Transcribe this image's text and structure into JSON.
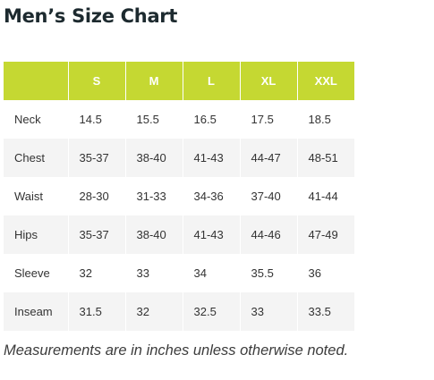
{
  "page": {
    "title": "Men’s Size Chart"
  },
  "table": {
    "headers": [
      "",
      "S",
      "M",
      "L",
      "XL",
      "XXL"
    ],
    "rows": [
      {
        "label": "Neck",
        "values": [
          "14.5",
          "15.5",
          "16.5",
          "17.5",
          "18.5"
        ]
      },
      {
        "label": "Chest",
        "values": [
          "35-37",
          "38-40",
          "41-43",
          "44-47",
          "48-51"
        ]
      },
      {
        "label": "Waist",
        "values": [
          "28-30",
          "31-33",
          "34-36",
          "37-40",
          "41-44"
        ]
      },
      {
        "label": "Hips",
        "values": [
          "35-37",
          "38-40",
          "41-43",
          "44-46",
          "47-49"
        ]
      },
      {
        "label": "Sleeve",
        "values": [
          "32",
          "33",
          "34",
          "35.5",
          "36"
        ]
      },
      {
        "label": "Inseam",
        "values": [
          "31.5",
          "32",
          "32.5",
          "33",
          "33.5"
        ]
      }
    ]
  },
  "note": "Measurements are in inches unless otherwise noted.",
  "colors": {
    "header_bg": "#c5d832",
    "row_alt_bg": "#f4f4f4",
    "title": "#1d2a2f"
  }
}
